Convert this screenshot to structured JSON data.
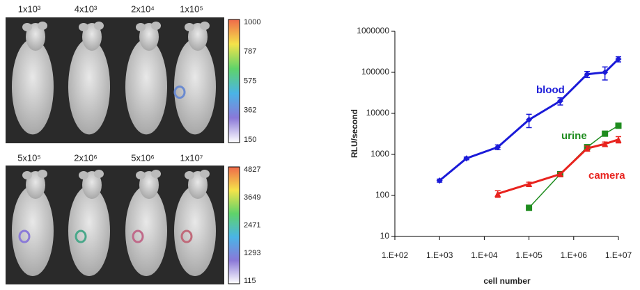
{
  "panels": [
    {
      "labels": [
        "1x10³",
        "4x10³",
        "2x10⁴",
        "1x10⁵"
      ],
      "colorbar_ticks": [
        1000,
        787,
        575,
        362,
        150
      ]
    },
    {
      "labels": [
        "5x10⁵",
        "2x10⁶",
        "5x10⁶",
        "1x10⁷"
      ],
      "colorbar_ticks": [
        4827,
        3649,
        2471,
        1293,
        115
      ]
    }
  ],
  "chart_data": {
    "type": "line",
    "xlabel": "cell number",
    "ylabel": "RLU/second",
    "xscale": "log",
    "yscale": "log",
    "xlim": [
      100,
      10000000
    ],
    "ylim": [
      10,
      1000000
    ],
    "xticks": [
      {
        "value": 100,
        "label": "1.E+02"
      },
      {
        "value": 1000,
        "label": "1.E+03"
      },
      {
        "value": 10000,
        "label": "1.E+04"
      },
      {
        "value": 100000,
        "label": "1.E+05"
      },
      {
        "value": 1000000,
        "label": "1.E+06"
      },
      {
        "value": 10000000,
        "label": "1.E+07"
      }
    ],
    "yticks": [
      10,
      100,
      1000,
      10000,
      100000,
      1000000
    ],
    "series": [
      {
        "name": "blood",
        "color": "#1a1ad8",
        "marker": "diamond",
        "x": [
          1000,
          4000,
          20000,
          100000,
          500000,
          2000000,
          5000000,
          10000000
        ],
        "values": [
          230,
          800,
          1500,
          7000,
          20000,
          90000,
          100000,
          210000
        ],
        "errors": [
          20,
          60,
          200,
          2500,
          4000,
          15000,
          35000,
          30000
        ]
      },
      {
        "name": "urine",
        "color": "#1e8c1e",
        "marker": "square",
        "x": [
          100000,
          500000,
          2000000,
          5000000,
          10000000
        ],
        "values": [
          50,
          330,
          1500,
          3200,
          5000
        ],
        "errors": [
          5,
          30,
          200,
          400,
          600
        ]
      },
      {
        "name": "camera",
        "color": "#e8231e",
        "marker": "triangle",
        "x": [
          20000,
          100000,
          500000,
          2000000,
          5000000,
          10000000
        ],
        "values": [
          110,
          190,
          330,
          1400,
          1800,
          2300
        ],
        "errors": [
          20,
          20,
          30,
          200,
          200,
          400
        ]
      }
    ]
  }
}
